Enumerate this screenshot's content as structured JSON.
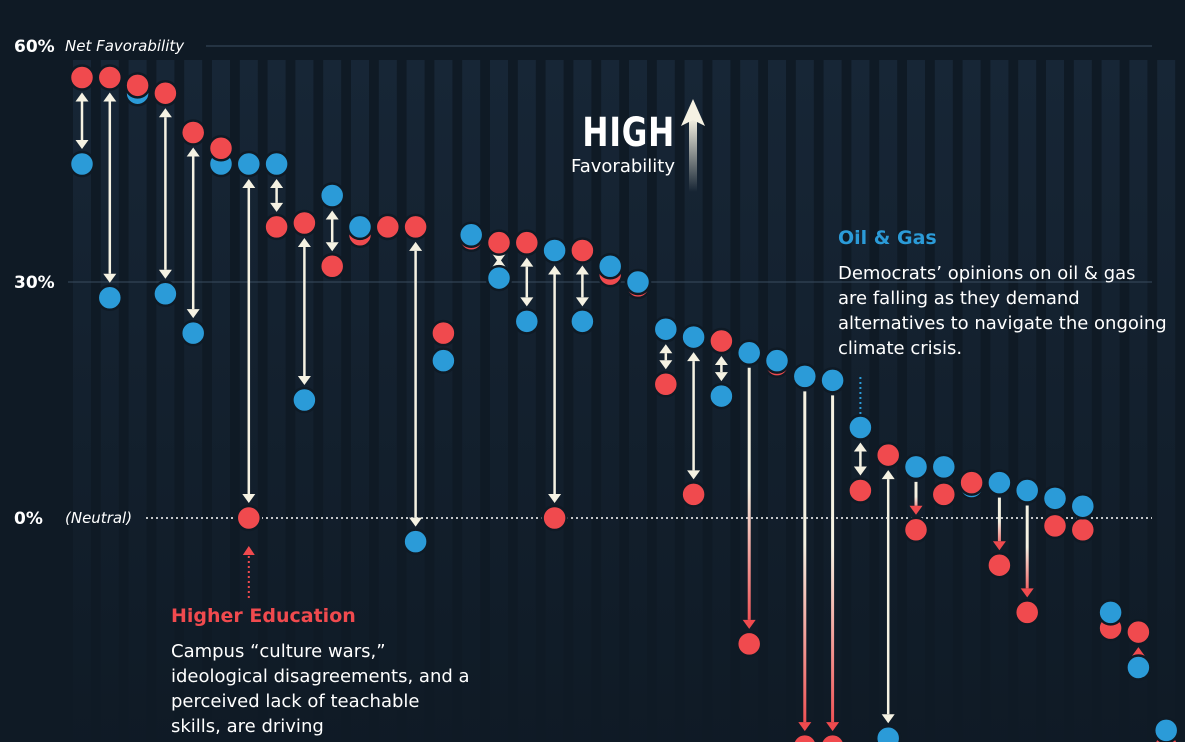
{
  "chart_data": {
    "type": "dumbbell",
    "ylim": [
      -45,
      65
    ],
    "ticks": [
      {
        "value": 60,
        "label": "60%",
        "sublabel": "Net Favorability"
      },
      {
        "value": 30,
        "label": "30%",
        "sublabel": ""
      },
      {
        "value": 0,
        "label": "0%",
        "sublabel": "(Neutral)"
      }
    ],
    "colors": {
      "series_a": "#2b9bd8",
      "series_b": "#f04a4e",
      "background": "#0f1a25"
    },
    "series": [
      {
        "color_key": "series_a",
        "values": [
          45,
          28,
          54,
          28.5,
          23.5,
          45,
          45,
          45,
          15,
          41,
          37,
          37,
          -3,
          20,
          36,
          30.5,
          25,
          34,
          25,
          32,
          30,
          24,
          23,
          15.5,
          21,
          20,
          18,
          17.5,
          11.5,
          -28,
          6.5,
          6.5,
          4,
          4.5,
          3.5,
          2.5,
          1.5,
          -12,
          -19,
          -27
        ]
      },
      {
        "color_key": "series_b",
        "values": [
          56,
          56,
          55,
          54,
          49,
          47,
          0,
          37,
          37.5,
          32,
          36,
          37,
          37,
          23.5,
          35.5,
          35,
          35,
          0,
          34,
          31,
          29.5,
          17,
          3,
          22.5,
          -16,
          19.5,
          -29,
          -29,
          3.5,
          8,
          -1.5,
          3,
          4.5,
          -6,
          -12,
          -1,
          -1.5,
          -14,
          -14.5,
          -29
        ]
      }
    ]
  },
  "high_label": {
    "word": "HIGH",
    "sub": "Favorability"
  },
  "annotations": {
    "oil": {
      "title": "Oil & Gas",
      "body": "Democrats’ opinions on oil & gas are falling as they demand alternatives to navigate the ongoing climate crisis."
    },
    "edu": {
      "title": "Higher Education",
      "body": "Campus “culture wars,” ideological disagreements, and a perceived lack of teachable skills, are driving"
    }
  }
}
